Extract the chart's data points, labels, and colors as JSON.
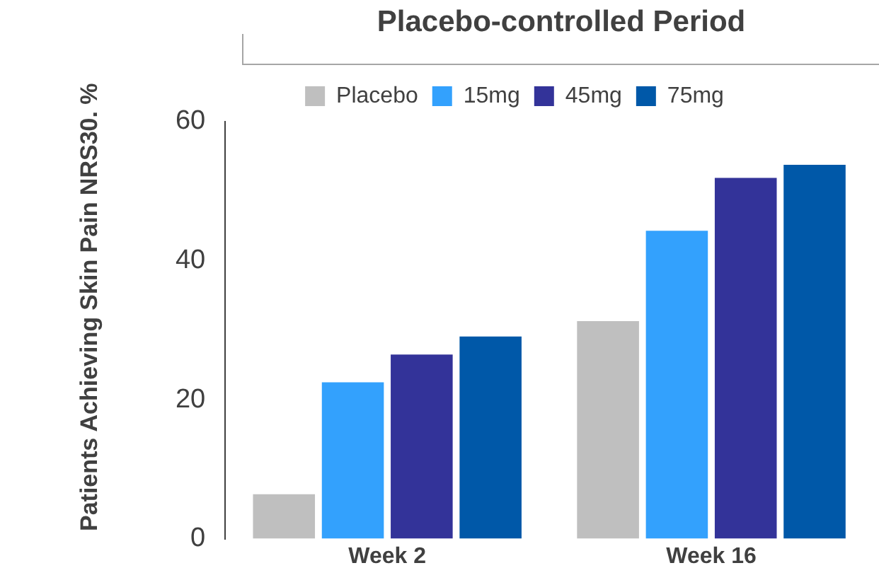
{
  "chart_data": {
    "type": "bar",
    "title": "Placebo-controlled Period",
    "ylabel": "Patients Achieving Skin Pain NRS30. %",
    "categories": [
      "Week 2",
      "Week 16"
    ],
    "series": [
      {
        "name": "Placebo",
        "color": "#bfbfbf",
        "values": [
          6.4,
          31.3
        ]
      },
      {
        "name": "15mg",
        "color": "#33a1fd",
        "values": [
          22.5,
          44.3
        ]
      },
      {
        "name": "45mg",
        "color": "#333399",
        "values": [
          26.5,
          51.9
        ]
      },
      {
        "name": "75mg",
        "color": "#0058a8",
        "values": [
          29.1,
          53.8
        ]
      }
    ],
    "ylim": [
      0,
      60
    ],
    "yticks": [
      0,
      20,
      40,
      60
    ],
    "grid": false,
    "legend": "top"
  }
}
